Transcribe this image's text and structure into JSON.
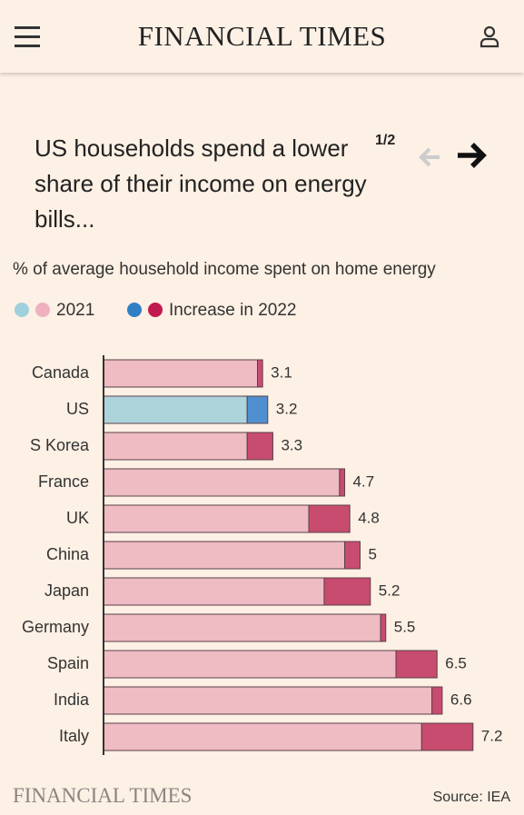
{
  "header": {
    "logo": "FINANCIAL TIMES"
  },
  "pager": "1/2",
  "chart_data": {
    "type": "stacked-bar-horizontal",
    "title": "US households spend a lower share of their income on energy bills...",
    "subtitle": "% of average household income spent on home energy",
    "categories": [
      "Canada",
      "US",
      "S Korea",
      "France",
      "UK",
      "China",
      "Japan",
      "Germany",
      "Spain",
      "India",
      "Italy"
    ],
    "series": [
      {
        "name": "2021",
        "color": "#efbcc4",
        "highlight_color": "#add3db",
        "legend_colors": [
          "#9fd0dc",
          "#eeb1bd"
        ],
        "values": [
          3.0,
          2.8,
          2.8,
          4.6,
          4.0,
          4.7,
          4.3,
          5.4,
          5.7,
          6.4,
          6.2
        ]
      },
      {
        "name": "Increase in 2022",
        "color": "#c84c70",
        "highlight_color": "#4f8fcf",
        "legend_colors": [
          "#2f7fc4",
          "#c01a4e"
        ],
        "values": [
          0.1,
          0.4,
          0.5,
          0.1,
          0.8,
          0.3,
          0.9,
          0.1,
          0.8,
          0.2,
          1.0
        ]
      }
    ],
    "totals": [
      3.1,
      3.2,
      3.3,
      4.7,
      4.8,
      5,
      5.2,
      5.5,
      6.5,
      6.6,
      7.2
    ],
    "highlight": "US",
    "source": "Source: IEA"
  },
  "footer": {
    "logo": "FINANCIAL TIMES"
  }
}
